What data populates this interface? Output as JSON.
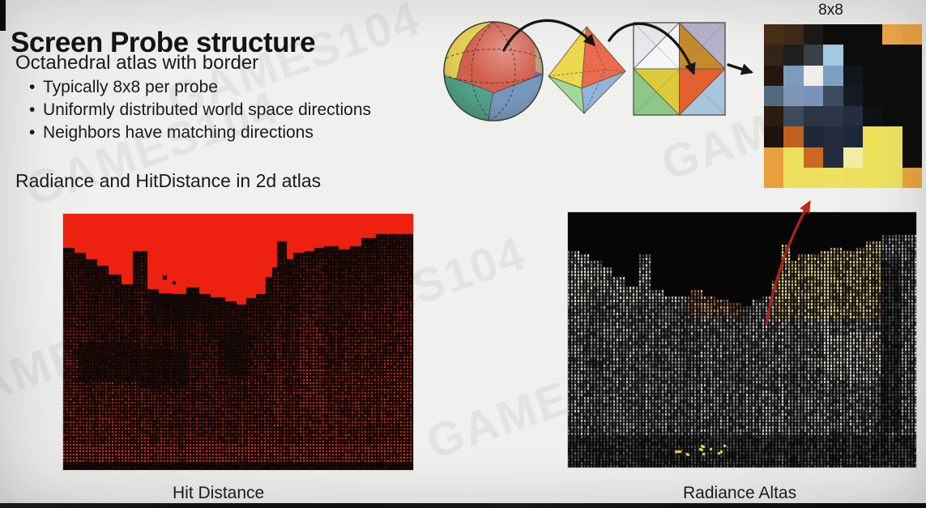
{
  "slide": {
    "title": "Screen Probe structure",
    "subtitle": "Octahedral atlas with border",
    "bullets": [
      "Typically 8x8 per probe",
      "Uniformly distributed world space directions",
      "Neighbors have matching directions"
    ],
    "section_label": "Radiance and HitDistance in 2d atlas",
    "grid_label": "8x8",
    "left_image_caption": "Hit Distance",
    "right_image_caption": "Radiance Altas",
    "watermark": "GAMES104"
  },
  "colors": {
    "sky_red": "#ee2110",
    "arrow_black": "#151515",
    "arrow_red": "#a92218",
    "text": "#1a1a1a"
  },
  "diagram": {
    "sphere": {
      "yellow": "#e3cf49",
      "red": "#cf5340",
      "teal": "#3f9e83",
      "blue": "#6b90ba",
      "purple": "#7c53a2",
      "tan": "#b29a6c"
    },
    "octahedron": {
      "yellow": "#ecd74e",
      "red": "#ec6a4e",
      "green": "#9fd898",
      "blue": "#92b4dc"
    },
    "map": {
      "tl_corner": "#e7eaed",
      "tl_inner": "#f5f6f7",
      "tr_corner": "#b7b1cb",
      "tr_inner": "#c58a2b",
      "br_corner": "#a9c5dd",
      "br_inner": "#e4602e",
      "bl_corner": "#8cc989",
      "bl_inner": "#ddca3a"
    }
  },
  "probe_grid": {
    "rows": 8,
    "cols": 8,
    "cells": [
      "#4a2f17",
      "#3f2a18",
      "#1d1a16",
      "#0e0d0c",
      "#0d0d0d",
      "#0d0d0d",
      "#eda647",
      "#e9a240",
      "#35241a",
      "#211f1d",
      "#3a4144",
      "#a3c9e2",
      "#0d0d0d",
      "#0d0d0d",
      "#0d0d0d",
      "#0d0d0d",
      "#24160f",
      "#7b9cba",
      "#eeede9",
      "#7e9ec2",
      "#11161c",
      "#0d0d0d",
      "#0d0d0d",
      "#0d0d0d",
      "#54687e",
      "#7b97b5",
      "#7b93b8",
      "#3b4a5e",
      "#151b23",
      "#0d0d0d",
      "#0d0d0d",
      "#0d0d0d",
      "#2b1c12",
      "#3e4a5c",
      "#2b3546",
      "#2b3546",
      "#232d3f",
      "#0f1113",
      "#0d0d0d",
      "#0d0d0d",
      "#1d130d",
      "#c2611d",
      "#1e2737",
      "#222c3c",
      "#1d2738",
      "#efe058",
      "#ece25f",
      "#0d0d0d",
      "#e9a03e",
      "#ece05c",
      "#c96a20",
      "#232d3d",
      "#f2eca4",
      "#ece05c",
      "#ede264",
      "#0f0e0c",
      "#e9a03e",
      "#ece05c",
      "#ebe05e",
      "#ece160",
      "#ebe05e",
      "#ece05c",
      "#ebe161",
      "#e9a43f"
    ]
  }
}
